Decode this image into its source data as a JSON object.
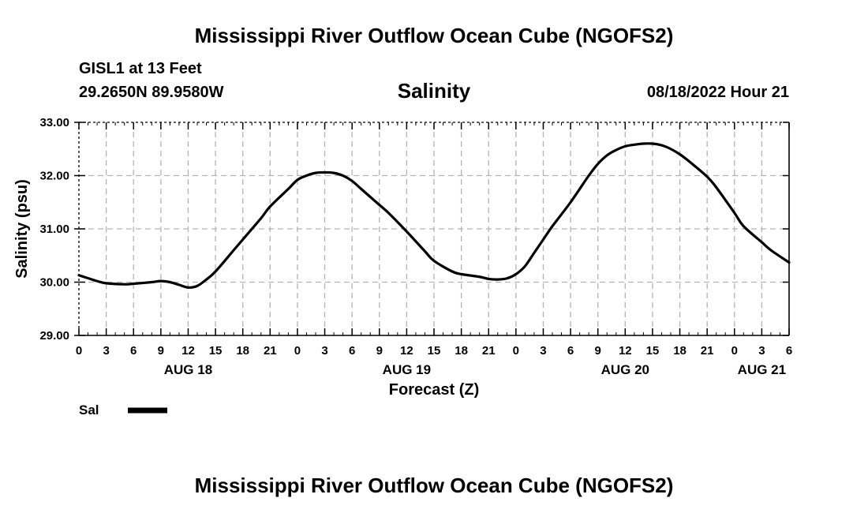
{
  "page": {
    "title_top": "Mississippi River Outflow Ocean Cube (NGOFS2)",
    "title_bottom": "Mississippi River Outflow Ocean Cube (NGOFS2)",
    "station": "GISL1 at 13 Feet",
    "coords": "29.2650N  89.9580W",
    "valid_time": "08/18/2022 Hour 21"
  },
  "chart_data": {
    "type": "line",
    "title": "Salinity",
    "xlabel": "Forecast (Z)",
    "ylabel": "Salinity (psu)",
    "ylim": [
      29,
      33
    ],
    "xlim": [
      0,
      78
    ],
    "y_ticks": [
      "29.00",
      "30.00",
      "31.00",
      "32.00",
      "33.00"
    ],
    "x_tick_labels": [
      "0",
      "3",
      "6",
      "9",
      "12",
      "15",
      "18",
      "21",
      "0",
      "3",
      "6",
      "9",
      "12",
      "15",
      "18",
      "21",
      "0",
      "3",
      "6",
      "9",
      "12",
      "15",
      "18",
      "21",
      "0",
      "3",
      "6"
    ],
    "date_labels": [
      {
        "label": "AUG 18",
        "hour": 12
      },
      {
        "label": "AUG 19",
        "hour": 36
      },
      {
        "label": "AUG 20",
        "hour": 60
      },
      {
        "label": "AUG 21",
        "hour": 75
      }
    ],
    "grid": true,
    "legend": [
      {
        "name": "Sal",
        "color": "#000000"
      }
    ],
    "series": [
      {
        "name": "Sal",
        "x": [
          0,
          2,
          3,
          5,
          6,
          8,
          9,
          10,
          11,
          12,
          13,
          14,
          15,
          17,
          18,
          20,
          21,
          23,
          24,
          25,
          26,
          27,
          28,
          29,
          30,
          31,
          33,
          34,
          36,
          38,
          39,
          41,
          42,
          44,
          45,
          46,
          47,
          48,
          49,
          50,
          51,
          52,
          54,
          56,
          57,
          58,
          59,
          60,
          61,
          62,
          63,
          64,
          65,
          66,
          67,
          69,
          70,
          72,
          73,
          75,
          76,
          78
        ],
        "y": [
          30.13,
          30.02,
          29.98,
          29.96,
          29.97,
          30.0,
          30.02,
          30.0,
          29.95,
          29.9,
          29.93,
          30.05,
          30.2,
          30.6,
          30.8,
          31.2,
          31.42,
          31.75,
          31.92,
          32.0,
          32.05,
          32.06,
          32.05,
          32.0,
          31.9,
          31.75,
          31.45,
          31.3,
          30.95,
          30.58,
          30.4,
          30.2,
          30.15,
          30.1,
          30.06,
          30.05,
          30.07,
          30.15,
          30.3,
          30.55,
          30.8,
          31.05,
          31.5,
          32.0,
          32.22,
          32.38,
          32.48,
          32.55,
          32.58,
          32.6,
          32.6,
          32.57,
          32.5,
          32.4,
          32.27,
          31.98,
          31.78,
          31.3,
          31.05,
          30.75,
          30.6,
          30.37
        ]
      }
    ]
  }
}
